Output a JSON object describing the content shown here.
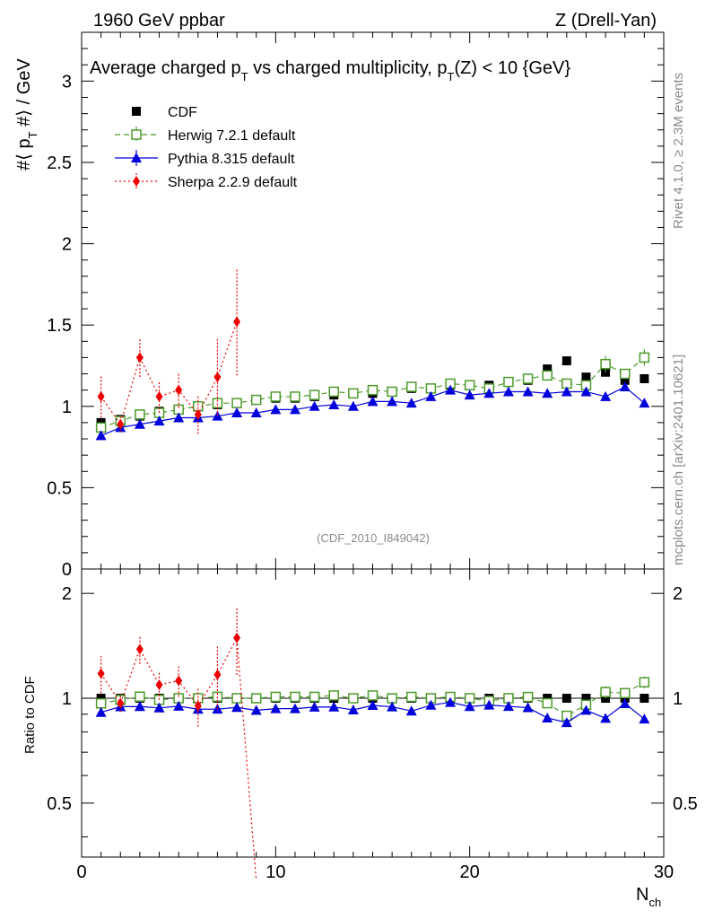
{
  "header": {
    "left": "1960 GeV ppbar",
    "right": "Z (Drell-Yan)"
  },
  "side_labels": {
    "rivet": "Rivet 4.1.0, ≥ 2.3M events",
    "mcplots": "mcplots.cern.ch [arXiv:2401.10621]"
  },
  "chart_data": {
    "type": "scatter",
    "title": "Average charged p_T vs charged multiplicity, p_T(Z) < 10 {GeV}",
    "title_parts": [
      "Average charged p",
      "T",
      " vs charged multiplicity, p",
      "T",
      "(Z) < 10 {GeV}"
    ],
    "reference_id": "(CDF_2010_I849042)",
    "xlabel": "N",
    "xlabel_sub": "ch",
    "ylabel_parts": [
      "#⟨ p",
      "T",
      " #⟩ / GeV"
    ],
    "ratio_ylabel": "Ratio to CDF",
    "xlim": [
      0,
      30
    ],
    "ylim": [
      0,
      3.3
    ],
    "ratio_ylim": [
      0.35,
      2.35
    ],
    "ratio_scale": "log",
    "x_ticks": [
      0,
      10,
      20,
      30
    ],
    "x_tick_labels": [
      "0",
      "10",
      "20",
      "30"
    ],
    "y_ticks": [
      0,
      0.5,
      1,
      1.5,
      2,
      2.5,
      3
    ],
    "y_tick_labels": [
      "0",
      "0.5",
      "1",
      "1.5",
      "2",
      "2.5",
      "3"
    ],
    "ratio_ticks": [
      0.5,
      1,
      2
    ],
    "ratio_tick_labels": [
      "0.5",
      "1",
      "2"
    ],
    "legend_position": "top-left",
    "series": [
      {
        "name": "CDF",
        "legend": "CDF",
        "color": "#000000",
        "marker": "square-filled",
        "line": "none",
        "x": [
          1,
          2,
          3,
          4,
          5,
          6,
          7,
          8,
          9,
          10,
          11,
          12,
          13,
          14,
          15,
          16,
          17,
          18,
          19,
          20,
          21,
          22,
          23,
          24,
          25,
          26,
          27,
          28,
          29
        ],
        "y": [
          0.9,
          0.92,
          0.94,
          0.97,
          0.98,
          1.0,
          1.01,
          1.02,
          1.04,
          1.05,
          1.05,
          1.06,
          1.07,
          1.08,
          1.08,
          1.09,
          1.11,
          1.11,
          1.13,
          1.13,
          1.13,
          1.15,
          1.16,
          1.23,
          1.28,
          1.18,
          1.21,
          1.16,
          1.17
        ],
        "err": [
          0.01,
          0.01,
          0.01,
          0.01,
          0.01,
          0.01,
          0.01,
          0.01,
          0.01,
          0.01,
          0.01,
          0.01,
          0.01,
          0.01,
          0.01,
          0.01,
          0.01,
          0.01,
          0.01,
          0.01,
          0.01,
          0.01,
          0.01,
          0.01,
          0.01,
          0.01,
          0.01,
          0.01,
          0.01
        ]
      },
      {
        "name": "Herwig",
        "legend": "Herwig 7.2.1 default",
        "color": "#4c9a2a",
        "marker": "square-open",
        "line": "dashed",
        "x": [
          1,
          2,
          3,
          4,
          5,
          6,
          7,
          8,
          9,
          10,
          11,
          12,
          13,
          14,
          15,
          16,
          17,
          18,
          19,
          20,
          21,
          22,
          23,
          24,
          25,
          26,
          27,
          28,
          29
        ],
        "y": [
          0.87,
          0.91,
          0.95,
          0.96,
          0.98,
          1.0,
          1.02,
          1.02,
          1.04,
          1.06,
          1.06,
          1.07,
          1.09,
          1.08,
          1.1,
          1.09,
          1.12,
          1.11,
          1.14,
          1.13,
          1.11,
          1.15,
          1.17,
          1.19,
          1.14,
          1.13,
          1.26,
          1.2,
          1.3
        ],
        "err": [
          0.01,
          0.01,
          0.01,
          0.01,
          0.01,
          0.01,
          0.01,
          0.01,
          0.01,
          0.01,
          0.01,
          0.01,
          0.01,
          0.01,
          0.01,
          0.01,
          0.01,
          0.01,
          0.01,
          0.01,
          0.01,
          0.01,
          0.015,
          0.02,
          0.02,
          0.025,
          0.05,
          0.03,
          0.05
        ]
      },
      {
        "name": "Pythia",
        "legend": "Pythia 8.315 default",
        "color": "#0000dd",
        "marker": "triangle",
        "line": "solid",
        "x": [
          1,
          2,
          3,
          4,
          5,
          6,
          7,
          8,
          9,
          10,
          11,
          12,
          13,
          14,
          15,
          16,
          17,
          18,
          19,
          20,
          21,
          22,
          23,
          24,
          25,
          26,
          27,
          28,
          29
        ],
        "y": [
          0.82,
          0.87,
          0.89,
          0.91,
          0.93,
          0.93,
          0.94,
          0.96,
          0.96,
          0.98,
          0.98,
          1.0,
          1.01,
          1.0,
          1.03,
          1.03,
          1.02,
          1.06,
          1.1,
          1.07,
          1.08,
          1.09,
          1.09,
          1.08,
          1.09,
          1.09,
          1.06,
          1.12,
          1.02
        ],
        "err": [
          0.005,
          0.005,
          0.005,
          0.005,
          0.005,
          0.005,
          0.005,
          0.005,
          0.005,
          0.005,
          0.005,
          0.005,
          0.005,
          0.005,
          0.005,
          0.005,
          0.005,
          0.005,
          0.005,
          0.005,
          0.005,
          0.005,
          0.005,
          0.005,
          0.01,
          0.01,
          0.01,
          0.015,
          0.025
        ]
      },
      {
        "name": "Sherpa",
        "legend": "Sherpa 2.2.9 default",
        "color": "#ee0000",
        "marker": "diamond",
        "line": "dotted",
        "x": [
          1,
          2,
          3,
          4,
          5,
          6,
          7,
          8
        ],
        "y": [
          1.06,
          0.89,
          1.3,
          1.06,
          1.1,
          0.95,
          1.18,
          1.52
        ],
        "err": [
          0.13,
          0.05,
          0.12,
          0.1,
          0.11,
          0.12,
          0.24,
          0.33
        ],
        "tail_ratio": 0.3
      }
    ]
  }
}
